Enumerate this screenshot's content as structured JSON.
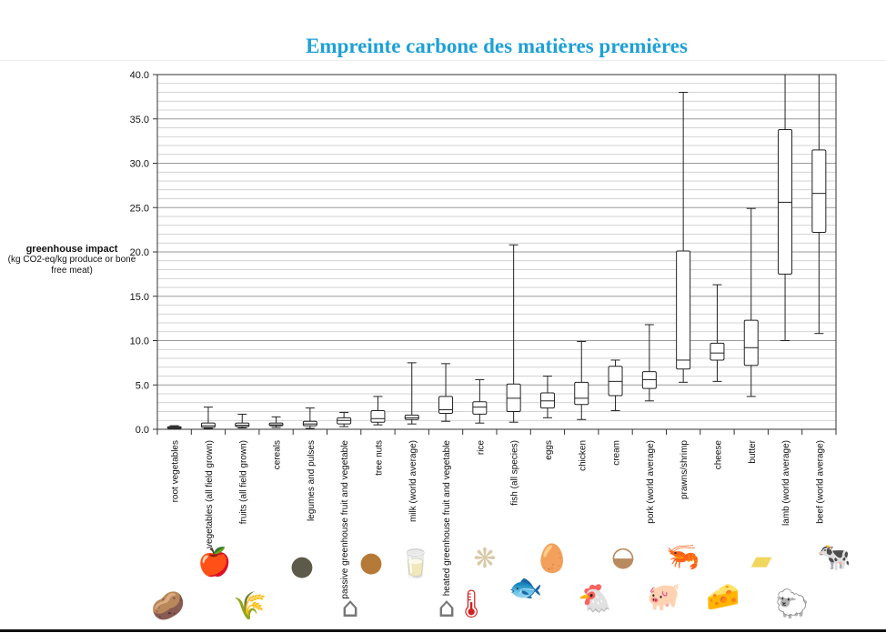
{
  "title": "Empreinte carbone des matières premières",
  "ylabel_main": "greenhouse impact",
  "ylabel_sub": "(kg CO2-eq/kg produce or bone free meat)",
  "chart_data": {
    "type": "boxplot",
    "ylim": [
      0,
      40
    ],
    "yticks": [
      "0.0",
      "5.0",
      "10.0",
      "15.0",
      "20.0",
      "25.0",
      "30.0",
      "35.0",
      "40.0"
    ],
    "grid": true,
    "categories": [
      "root vegetables",
      "vegetables (all field grown)",
      "fruits (all field grown)",
      "cereals",
      "legumes and pulses",
      "passive greenhouse fruit and vegetable",
      "tree nuts",
      "milk (world average)",
      "heated greenhouse fruit and vegetable",
      "rice",
      "fish (all species)",
      "eggs",
      "chicken",
      "cream",
      "pork (world average)",
      "prawns/shrimp",
      "cheese",
      "butter",
      "lamb (world average)",
      "beef (world average)"
    ],
    "boxes": [
      {
        "min": 0.1,
        "q1": 0.15,
        "median": 0.2,
        "q3": 0.3,
        "max": 0.4
      },
      {
        "min": 0.1,
        "q1": 0.2,
        "median": 0.4,
        "q3": 0.7,
        "max": 2.5
      },
      {
        "min": 0.15,
        "q1": 0.3,
        "median": 0.45,
        "q3": 0.7,
        "max": 1.7
      },
      {
        "min": 0.2,
        "q1": 0.4,
        "median": 0.5,
        "q3": 0.7,
        "max": 1.4
      },
      {
        "min": 0.1,
        "q1": 0.4,
        "median": 0.6,
        "q3": 0.9,
        "max": 2.4
      },
      {
        "min": 0.3,
        "q1": 0.6,
        "median": 1.0,
        "q3": 1.3,
        "max": 1.9
      },
      {
        "min": 0.5,
        "q1": 0.8,
        "median": 1.2,
        "q3": 2.1,
        "max": 3.7
      },
      {
        "min": 0.6,
        "q1": 1.1,
        "median": 1.3,
        "q3": 1.6,
        "max": 7.5
      },
      {
        "min": 0.9,
        "q1": 1.8,
        "median": 2.2,
        "q3": 3.7,
        "max": 7.4
      },
      {
        "min": 0.7,
        "q1": 1.7,
        "median": 2.5,
        "q3": 3.1,
        "max": 5.6
      },
      {
        "min": 0.8,
        "q1": 2.0,
        "median": 3.5,
        "q3": 5.1,
        "max": 20.8
      },
      {
        "min": 1.3,
        "q1": 2.4,
        "median": 3.2,
        "q3": 4.1,
        "max": 6.0
      },
      {
        "min": 1.1,
        "q1": 2.8,
        "median": 3.5,
        "q3": 5.3,
        "max": 9.9
      },
      {
        "min": 2.1,
        "q1": 3.8,
        "median": 5.4,
        "q3": 7.1,
        "max": 7.8
      },
      {
        "min": 3.2,
        "q1": 4.6,
        "median": 5.6,
        "q3": 6.5,
        "max": 11.8
      },
      {
        "min": 5.3,
        "q1": 6.8,
        "median": 7.8,
        "q3": 20.1,
        "max": 38.0
      },
      {
        "min": 5.4,
        "q1": 7.8,
        "median": 8.6,
        "q3": 9.7,
        "max": 16.3
      },
      {
        "min": 3.7,
        "q1": 7.2,
        "median": 9.2,
        "q3": 12.3,
        "max": 24.9
      },
      {
        "min": 10.0,
        "q1": 17.5,
        "median": 25.6,
        "q3": 33.8,
        "max": 40.0
      },
      {
        "min": 10.8,
        "q1": 22.2,
        "median": 26.6,
        "q3": 31.5,
        "max": 40.0
      }
    ]
  },
  "icons": [
    {
      "name": "apple-icon",
      "glyph": "🍎",
      "color": "#d12a1f"
    },
    {
      "name": "potato-icon",
      "glyph": "🥔",
      "color": "#d9b45a"
    },
    {
      "name": "wheat-icon",
      "glyph": "🌾",
      "color": "#a47b3c"
    },
    {
      "name": "lentils-icon",
      "glyph": "●",
      "color": "#5e5a4a"
    },
    {
      "name": "greenhouse-icon",
      "glyph": "⌂",
      "color": "#777777"
    },
    {
      "name": "walnut-icon",
      "glyph": "●",
      "color": "#b57a37"
    },
    {
      "name": "milk-icon",
      "glyph": "🥛",
      "color": "#cccccc"
    },
    {
      "name": "greenhouse-heated-icon",
      "glyph": "⌂",
      "color": "#777777"
    },
    {
      "name": "thermometer-icon",
      "glyph": "🌡",
      "color": "#d32020"
    },
    {
      "name": "rice-icon",
      "glyph": "❋",
      "color": "#d8c9a8"
    },
    {
      "name": "fish-icon",
      "glyph": "🐟",
      "color": "#6b7785"
    },
    {
      "name": "eggs-icon",
      "glyph": "🥚",
      "color": "#e1a070"
    },
    {
      "name": "chicken-icon",
      "glyph": "🐔",
      "color": "#c58a3d"
    },
    {
      "name": "cream-bowl-icon",
      "glyph": "◒",
      "color": "#b98a5f"
    },
    {
      "name": "pig-icon",
      "glyph": "🐖",
      "color": "#e7a3a8"
    },
    {
      "name": "shrimp-icon",
      "glyph": "🦐",
      "color": "#f08040"
    },
    {
      "name": "cheese-icon",
      "glyph": "🧀",
      "color": "#e3c26a"
    },
    {
      "name": "butter-icon",
      "glyph": "▰",
      "color": "#f1d65d"
    },
    {
      "name": "lamb-icon",
      "glyph": "🐑",
      "color": "#bbbbbb"
    },
    {
      "name": "cow-icon",
      "glyph": "🐄",
      "color": "#b06a30"
    }
  ]
}
